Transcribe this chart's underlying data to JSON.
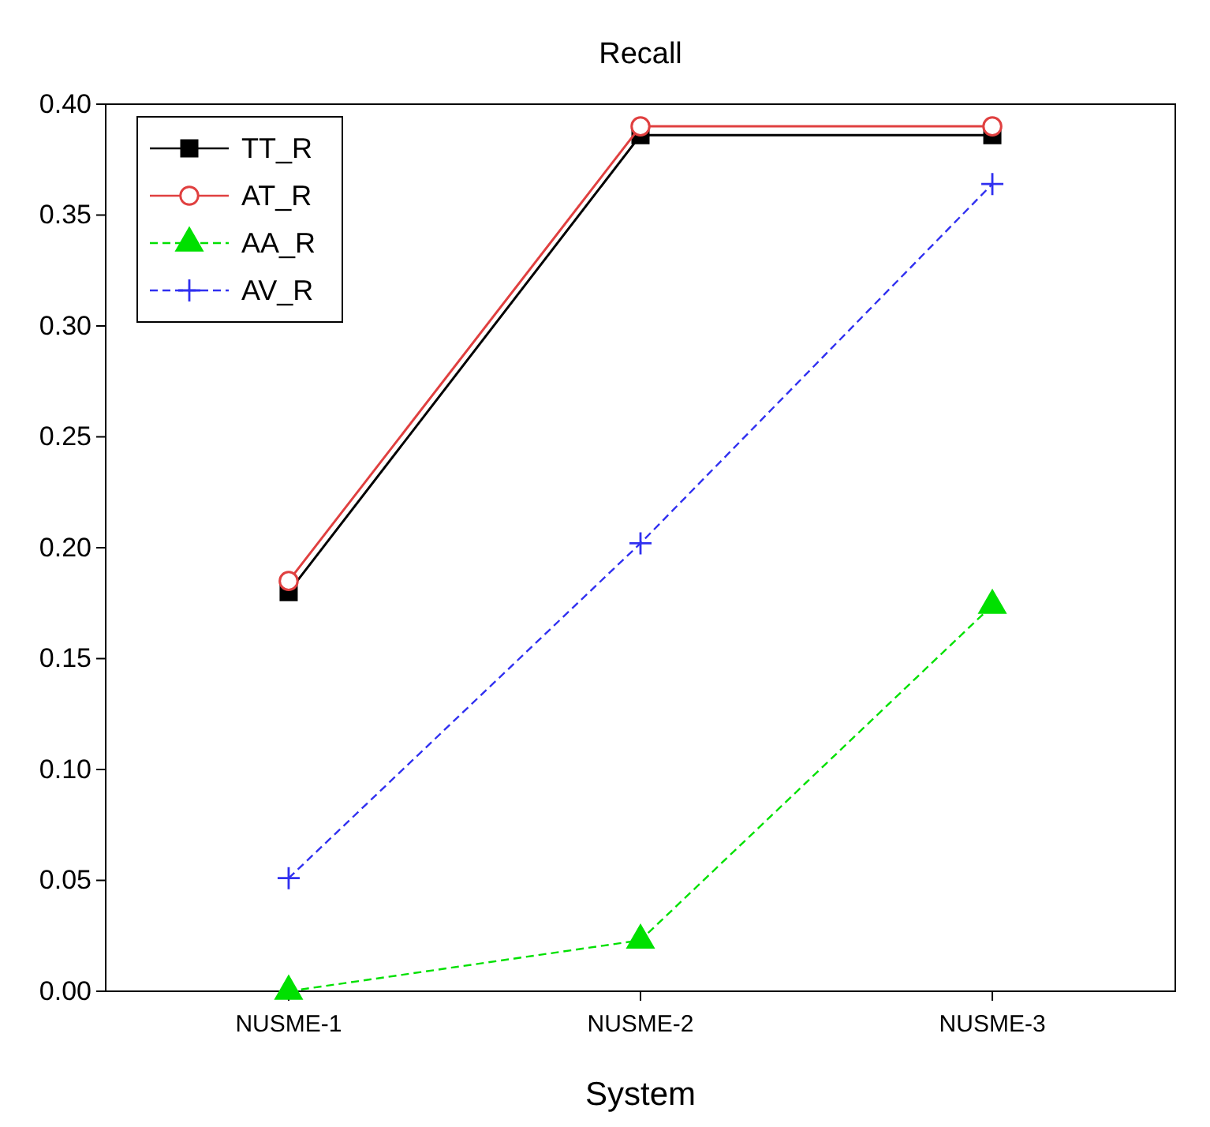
{
  "chart_data": {
    "type": "line",
    "title": "Recall",
    "xlabel": "System",
    "categories": [
      "NUSME-1",
      "NUSME-2",
      "NUSME-3"
    ],
    "ylim": [
      0,
      0.4
    ],
    "yticks": [
      {
        "value": 0,
        "label": "0.00"
      },
      {
        "value": 0.05,
        "label": "0.05"
      },
      {
        "value": 0.1,
        "label": "0.10"
      },
      {
        "value": 0.15,
        "label": "0.15"
      },
      {
        "value": 0.2,
        "label": "0.20"
      },
      {
        "value": 0.25,
        "label": "0.25"
      },
      {
        "value": 0.3,
        "label": "0.30"
      },
      {
        "value": 0.35,
        "label": "0.35"
      },
      {
        "value": 0.4,
        "label": "0.40"
      }
    ],
    "grid": false,
    "legend": "top left",
    "series": [
      {
        "name": "TT_R",
        "color": "#000000",
        "marker": "square",
        "line_style": "solid",
        "values": [
          0.18,
          0.386,
          0.386
        ]
      },
      {
        "name": "AT_R",
        "color": "#e04040",
        "marker": "circle",
        "line_style": "solid",
        "values": [
          0.185,
          0.39,
          0.39
        ]
      },
      {
        "name": "AA_R",
        "color": "#00e000",
        "marker": "triangle",
        "line_style": "dashed",
        "values": [
          0,
          0.023,
          0.174
        ]
      },
      {
        "name": "AV_R",
        "color": "#3030f0",
        "marker": "cross",
        "line_style": "dashed",
        "values": [
          0.051,
          0.202,
          0.364
        ]
      }
    ]
  }
}
